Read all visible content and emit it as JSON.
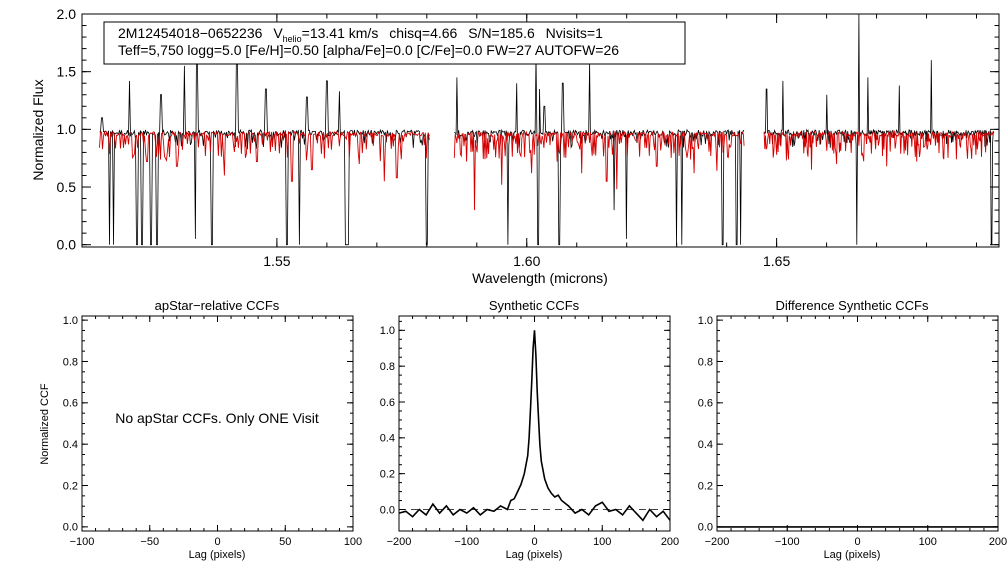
{
  "chart_data": [
    {
      "type": "line",
      "id": "spectrum",
      "xlabel": "Wavelength (microns)",
      "ylabel": "Normalized Flux",
      "xlim": [
        1.511,
        1.6945
      ],
      "ylim": [
        -0.02,
        2.0
      ],
      "x_ticks": [
        1.55,
        1.6,
        1.65
      ],
      "x_tick_labels": [
        "1.55",
        "1.60",
        "1.65"
      ],
      "y_ticks": [
        0.0,
        0.5,
        1.0,
        1.5,
        2.0
      ],
      "y_tick_labels": [
        "0.0",
        "0.5",
        "1.0",
        "1.5",
        "2.0"
      ],
      "annotation": {
        "line1_name": "2M12454018−0652236",
        "line1_v": "V",
        "line1_v_sub": "helio",
        "line1_v_val": "=13.41 km/s",
        "line1_chisq": "chisq=4.66",
        "line1_sn": "S/N=185.6",
        "line1_nvisits": "Nvisits=1",
        "line2": "Teff=5,750 logg=5.0 [Fe/H]=0.50 [alpha/Fe]=0.0 [C/Fe]=0.0 FW=27 AUTOFW=26"
      },
      "chips": [
        [
          1.5145,
          1.5805
        ],
        [
          1.5855,
          1.6435
        ],
        [
          1.6475,
          1.6935
        ]
      ],
      "series": [
        {
          "name": "observed",
          "color": "#000000",
          "continuum": 0.97
        },
        {
          "name": "model",
          "color": "#d40000",
          "continuum": 0.96
        }
      ],
      "spikes": [
        {
          "x": 1.515,
          "y": 1.1
        },
        {
          "x": 1.5205,
          "y": 1.42
        },
        {
          "x": 1.5268,
          "y": 1.3
        },
        {
          "x": 1.5315,
          "y": 1.55
        },
        {
          "x": 1.534,
          "y": 1.58
        },
        {
          "x": 1.542,
          "y": 1.62
        },
        {
          "x": 1.5478,
          "y": 1.35
        },
        {
          "x": 1.556,
          "y": 1.28
        },
        {
          "x": 1.56,
          "y": 1.42
        },
        {
          "x": 1.5625,
          "y": 1.33
        },
        {
          "x": 1.586,
          "y": 1.45
        },
        {
          "x": 1.598,
          "y": 1.4
        },
        {
          "x": 1.6018,
          "y": 1.65
        },
        {
          "x": 1.6025,
          "y": 1.35
        },
        {
          "x": 1.6035,
          "y": 1.2
        },
        {
          "x": 1.6072,
          "y": 1.4
        },
        {
          "x": 1.6125,
          "y": 1.58
        },
        {
          "x": 1.648,
          "y": 1.35
        },
        {
          "x": 1.6513,
          "y": 1.42
        },
        {
          "x": 1.66,
          "y": 1.3
        },
        {
          "x": 1.6665,
          "y": 2.0
        },
        {
          "x": 1.6683,
          "y": 1.45
        },
        {
          "x": 1.6745,
          "y": 1.38
        },
        {
          "x": 1.681,
          "y": 1.6
        }
      ],
      "dips": [
        {
          "x": 1.5165,
          "y": 0.0
        },
        {
          "x": 1.5173,
          "y": 0.0
        },
        {
          "x": 1.522,
          "y": 0.0
        },
        {
          "x": 1.523,
          "y": 0.0
        },
        {
          "x": 1.5248,
          "y": 0.0
        },
        {
          "x": 1.526,
          "y": 0.0
        },
        {
          "x": 1.5338,
          "y": 0.05
        },
        {
          "x": 1.537,
          "y": 0.0
        },
        {
          "x": 1.552,
          "y": 0.0
        },
        {
          "x": 1.5545,
          "y": 0.0
        },
        {
          "x": 1.56,
          "y": 0.0
        },
        {
          "x": 1.5638,
          "y": 0.0
        },
        {
          "x": 1.5642,
          "y": 0.0
        },
        {
          "x": 1.58,
          "y": 0.0
        },
        {
          "x": 1.5962,
          "y": 0.0
        },
        {
          "x": 1.6023,
          "y": 0.0
        },
        {
          "x": 1.6065,
          "y": 0.0
        },
        {
          "x": 1.6175,
          "y": 0.3
        },
        {
          "x": 1.62,
          "y": 0.05
        },
        {
          "x": 1.63,
          "y": 0.0
        },
        {
          "x": 1.631,
          "y": 0.0
        },
        {
          "x": 1.6392,
          "y": 0.0
        },
        {
          "x": 1.642,
          "y": 0.0
        },
        {
          "x": 1.6428,
          "y": 0.0
        },
        {
          "x": 1.666,
          "y": 0.0
        },
        {
          "x": 1.6665,
          "y": 0.0
        },
        {
          "x": 1.693,
          "y": 0.0
        }
      ],
      "model_dips": [
        {
          "x": 1.524,
          "y": 0.72
        },
        {
          "x": 1.53,
          "y": 0.68
        },
        {
          "x": 1.5395,
          "y": 0.6
        },
        {
          "x": 1.546,
          "y": 0.72
        },
        {
          "x": 1.553,
          "y": 0.55
        },
        {
          "x": 1.557,
          "y": 0.65
        },
        {
          "x": 1.5665,
          "y": 0.7
        },
        {
          "x": 1.5715,
          "y": 0.55
        },
        {
          "x": 1.574,
          "y": 0.58
        },
        {
          "x": 1.588,
          "y": 0.72
        },
        {
          "x": 1.5895,
          "y": 0.3
        },
        {
          "x": 1.592,
          "y": 0.75
        },
        {
          "x": 1.595,
          "y": 0.52
        },
        {
          "x": 1.601,
          "y": 0.62
        },
        {
          "x": 1.606,
          "y": 0.72
        },
        {
          "x": 1.611,
          "y": 0.62
        },
        {
          "x": 1.616,
          "y": 0.55
        },
        {
          "x": 1.618,
          "y": 0.48
        },
        {
          "x": 1.626,
          "y": 0.68
        },
        {
          "x": 1.6335,
          "y": 0.62
        },
        {
          "x": 1.638,
          "y": 0.64
        },
        {
          "x": 1.652,
          "y": 0.73
        },
        {
          "x": 1.657,
          "y": 0.65
        },
        {
          "x": 1.662,
          "y": 0.7
        },
        {
          "x": 1.672,
          "y": 0.68
        },
        {
          "x": 1.678,
          "y": 0.72
        },
        {
          "x": 1.686,
          "y": 0.74
        }
      ]
    },
    {
      "type": "line",
      "id": "apstar-ccf",
      "title": "apStar−relative CCFs",
      "xlabel": "Lag (pixels)",
      "ylabel": "Normalized CCF",
      "xlim": [
        -100,
        100
      ],
      "ylim": [
        -0.02,
        1.02
      ],
      "x_ticks": [
        -100,
        -50,
        0,
        50,
        100
      ],
      "x_tick_labels": [
        "−100",
        "−50",
        "0",
        "50",
        "100"
      ],
      "y_ticks": [
        0.0,
        0.2,
        0.4,
        0.6,
        0.8,
        1.0
      ],
      "y_tick_labels": [
        "0.0",
        "0.2",
        "0.4",
        "0.6",
        "0.8",
        "1.0"
      ],
      "message": "No apStar CCFs.  Only ONE Visit",
      "series": []
    },
    {
      "type": "line",
      "id": "synthetic-ccf",
      "title": "Synthetic CCFs",
      "xlabel": "Lag (pixels)",
      "xlim": [
        -200,
        200
      ],
      "ylim": [
        -0.12,
        1.08
      ],
      "x_ticks": [
        -200,
        -100,
        0,
        100,
        200
      ],
      "x_tick_labels": [
        "−200",
        "−100",
        "0",
        "100",
        "200"
      ],
      "y_ticks": [
        0.0,
        0.2,
        0.4,
        0.6,
        0.8,
        1.0
      ],
      "y_tick_labels": [
        "0.0",
        "0.2",
        "0.4",
        "0.6",
        "0.8",
        "1.0"
      ],
      "reference_line": 0.0,
      "series": [
        {
          "name": "synthetic CCF",
          "x": [
            -200,
            -190,
            -180,
            -170,
            -160,
            -150,
            -140,
            -130,
            -120,
            -110,
            -100,
            -90,
            -80,
            -70,
            -60,
            -50,
            -40,
            -35,
            -30,
            -25,
            -20,
            -15,
            -10,
            -8,
            -6,
            -4,
            -2,
            0,
            2,
            4,
            6,
            8,
            10,
            15,
            20,
            25,
            30,
            35,
            40,
            50,
            60,
            70,
            80,
            90,
            100,
            110,
            120,
            130,
            140,
            150,
            160,
            170,
            180,
            190,
            200
          ],
          "values": [
            -0.02,
            -0.01,
            -0.04,
            0.0,
            -0.03,
            0.03,
            -0.02,
            0.02,
            -0.03,
            0.0,
            -0.02,
            0.01,
            -0.03,
            0.0,
            -0.01,
            0.02,
            0.0,
            0.05,
            0.06,
            0.1,
            0.14,
            0.2,
            0.3,
            0.4,
            0.55,
            0.72,
            0.9,
            1.0,
            0.86,
            0.66,
            0.5,
            0.36,
            0.27,
            0.17,
            0.12,
            0.09,
            0.07,
            0.08,
            0.05,
            0.02,
            -0.02,
            0.0,
            -0.03,
            0.02,
            0.04,
            -0.01,
            0.0,
            -0.03,
            0.02,
            -0.02,
            -0.06,
            0.0,
            -0.04,
            -0.01,
            -0.06
          ]
        }
      ]
    },
    {
      "type": "line",
      "id": "difference-ccf",
      "title": "Difference Synthetic CCFs",
      "xlabel": "Lag (pixels)",
      "xlim": [
        -200,
        200
      ],
      "ylim": [
        -0.02,
        1.02
      ],
      "x_ticks": [
        -200,
        -100,
        0,
        100,
        200
      ],
      "x_tick_labels": [
        "−200",
        "−100",
        "0",
        "100",
        "200"
      ],
      "y_ticks": [
        0.0,
        0.2,
        0.4,
        0.6,
        0.8,
        1.0
      ],
      "y_tick_labels": [
        "0.0",
        "0.2",
        "0.4",
        "0.6",
        "0.8",
        "1.0"
      ],
      "series": [
        {
          "name": "difference CCF",
          "x": [
            -200,
            200
          ],
          "values": [
            0.0,
            0.0
          ]
        }
      ]
    }
  ]
}
